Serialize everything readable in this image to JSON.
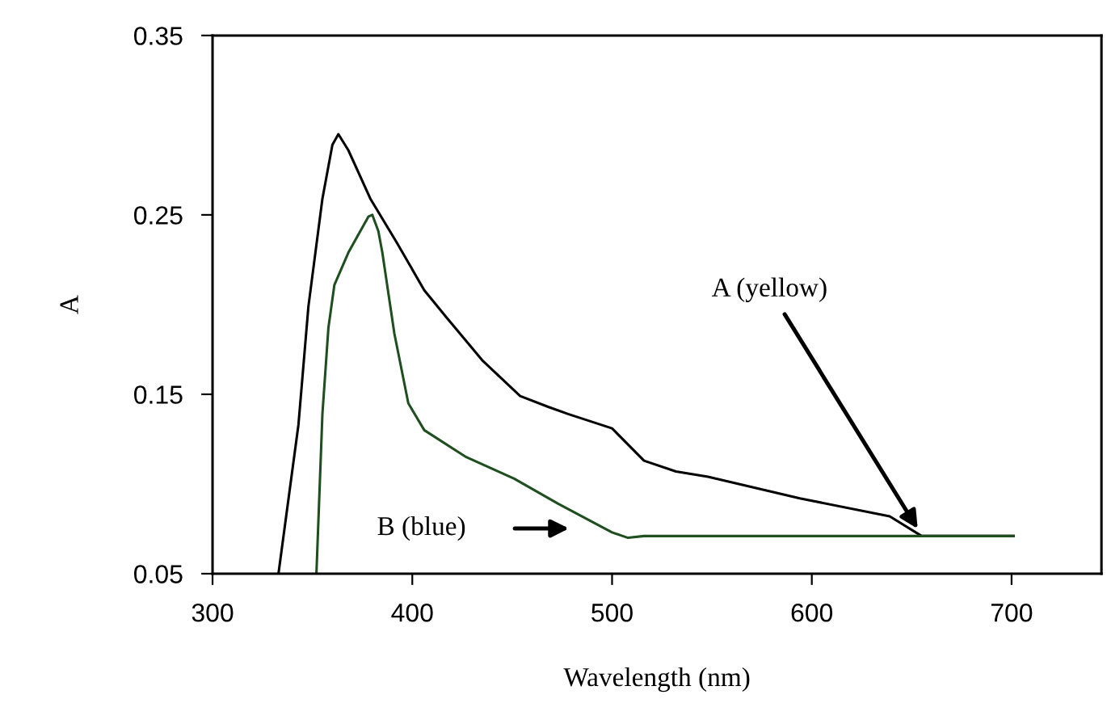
{
  "chart_data": {
    "type": "line",
    "xlabel": "Wavelength (nm)",
    "ylabel": "A",
    "xlim": [
      300,
      745
    ],
    "ylim": [
      0.05,
      0.35
    ],
    "xticks": [
      300,
      400,
      500,
      600,
      700
    ],
    "yticks": [
      0.05,
      0.15,
      0.25,
      0.35
    ],
    "grid": false,
    "legend": false,
    "marker": "none",
    "line_style": "solid",
    "series": [
      {
        "color": "#000000",
        "x": [
          333,
          343,
          348,
          355,
          360,
          363,
          368,
          379,
          392,
          406,
          417,
          435,
          454,
          468,
          478,
          500,
          516,
          532,
          548,
          594,
          639,
          655,
          701
        ],
        "values": [
          0.05,
          0.133,
          0.199,
          0.259,
          0.289,
          0.295,
          0.286,
          0.259,
          0.235,
          0.208,
          0.193,
          0.169,
          0.149,
          0.143,
          0.139,
          0.131,
          0.113,
          0.107,
          0.104,
          0.092,
          0.082,
          0.071,
          0.071
        ]
      },
      {
        "color": "#1f4f1f",
        "x": [
          352,
          355,
          358,
          361,
          368,
          378,
          380,
          383,
          385,
          391,
          398,
          406,
          427,
          451,
          473,
          500,
          508,
          516,
          701
        ],
        "values": [
          0.05,
          0.139,
          0.187,
          0.211,
          0.229,
          0.249,
          0.25,
          0.241,
          0.229,
          0.184,
          0.145,
          0.13,
          0.115,
          0.103,
          0.089,
          0.073,
          0.07,
          0.071,
          0.071
        ]
      }
    ],
    "annotations": [
      {
        "text": "A (yellow)",
        "x": 653,
        "y": 0.075
      },
      "B (blue)"
    ]
  }
}
